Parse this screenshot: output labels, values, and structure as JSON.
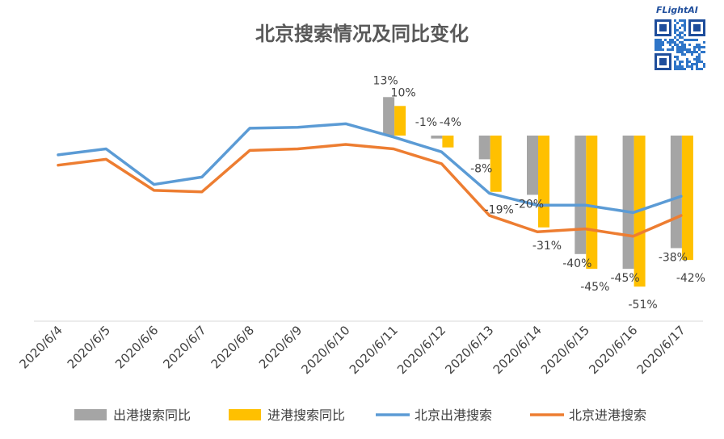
{
  "chart_data": {
    "type": "bar",
    "title": "北京搜索情况及同比变化",
    "categories": [
      "2020/6/4",
      "2020/6/5",
      "2020/6/6",
      "2020/6/7",
      "2020/6/8",
      "2020/6/9",
      "2020/6/10",
      "2020/6/11",
      "2020/6/12",
      "2020/6/13",
      "2020/6/14",
      "2020/6/15",
      "2020/6/16",
      "2020/6/17"
    ],
    "bar_series": [
      {
        "name": "出港搜索同比",
        "color": "#a5a5a5",
        "values": [
          null,
          null,
          null,
          null,
          null,
          null,
          null,
          13,
          -1,
          -8,
          -20,
          -40,
          -45,
          -38
        ],
        "labels": [
          "",
          "",
          "",
          "",
          "",
          "",
          "",
          "13%",
          "-1%",
          "-8%",
          "-20%",
          "-40%",
          "-45%",
          "-38%"
        ]
      },
      {
        "name": "进港搜索同比",
        "color": "#ffc000",
        "values": [
          null,
          null,
          null,
          null,
          null,
          null,
          null,
          10,
          -4,
          -19,
          -31,
          -45,
          -51,
          -42
        ],
        "labels": [
          "",
          "",
          "",
          "",
          "",
          "",
          "",
          "10%",
          "-4%",
          "-19%",
          "-31%",
          "-45%",
          "-51%",
          "-42%"
        ]
      }
    ],
    "line_series": [
      {
        "name": "北京出港搜索",
        "color": "#5b9bd5",
        "values": [
          -6.5,
          -4.5,
          -16.5,
          -14,
          2.5,
          2.8,
          4,
          -0.5,
          -5.5,
          -19.5,
          -23.5,
          -23.5,
          -26,
          -20.5
        ]
      },
      {
        "name": "北京进港搜索",
        "color": "#ed7d31",
        "values": [
          -10,
          -8,
          -18.5,
          -19,
          -5,
          -4.5,
          -3,
          -4.5,
          -9.5,
          -27,
          -32.5,
          -31.5,
          -34,
          -27
        ]
      }
    ],
    "ylim": [
      -60,
      20
    ],
    "grid": false,
    "legend_position": "bottom"
  },
  "watermark": {
    "brand": "FLightAI"
  }
}
